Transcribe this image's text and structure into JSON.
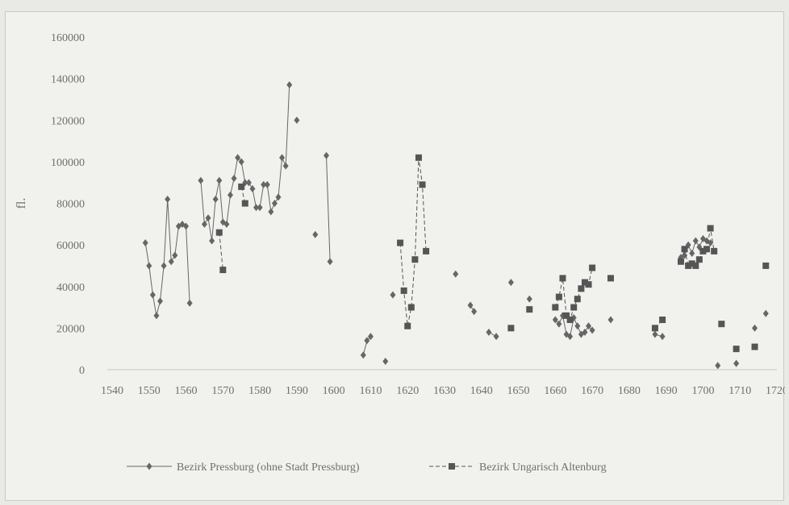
{
  "chart_data": {
    "type": "line",
    "title": "",
    "xlabel": "",
    "ylabel": "fl.",
    "xlim": [
      1540,
      1720
    ],
    "ylim": [
      0,
      160000
    ],
    "x_ticks": [
      1540,
      1550,
      1560,
      1570,
      1580,
      1590,
      1600,
      1610,
      1620,
      1630,
      1640,
      1650,
      1660,
      1670,
      1680,
      1690,
      1700,
      1710,
      1720
    ],
    "y_ticks": [
      0,
      20000,
      40000,
      60000,
      80000,
      100000,
      120000,
      140000,
      160000
    ],
    "grid": false,
    "legend_position": "bottom",
    "series": [
      {
        "name": "Bezirk Pressburg (ohne Stadt Pressburg)",
        "style": "solid",
        "marker": "diamond",
        "color": "#666666",
        "segments": [
          [
            [
              1549,
              61000
            ],
            [
              1550,
              50000
            ],
            [
              1551,
              36000
            ],
            [
              1552,
              26000
            ],
            [
              1553,
              33000
            ],
            [
              1554,
              50000
            ],
            [
              1555,
              82000
            ],
            [
              1556,
              52000
            ],
            [
              1557,
              55000
            ],
            [
              1558,
              69000
            ],
            [
              1559,
              70000
            ],
            [
              1560,
              69000
            ],
            [
              1561,
              32000
            ]
          ],
          [
            [
              1564,
              91000
            ],
            [
              1565,
              70000
            ],
            [
              1566,
              73000
            ],
            [
              1567,
              62000
            ],
            [
              1568,
              82000
            ],
            [
              1569,
              91000
            ],
            [
              1570,
              71000
            ],
            [
              1571,
              70000
            ],
            [
              1572,
              84000
            ],
            [
              1573,
              92000
            ],
            [
              1574,
              102000
            ],
            [
              1575,
              100000
            ],
            [
              1576,
              90000
            ],
            [
              1577,
              90000
            ],
            [
              1578,
              87000
            ],
            [
              1579,
              78000
            ],
            [
              1580,
              78000
            ],
            [
              1581,
              89000
            ],
            [
              1582,
              89000
            ],
            [
              1583,
              76000
            ],
            [
              1584,
              80000
            ],
            [
              1585,
              83000
            ],
            [
              1586,
              102000
            ],
            [
              1587,
              98000
            ],
            [
              1588,
              137000
            ]
          ],
          [
            [
              1590,
              120000
            ]
          ],
          [
            [
              1595,
              65000
            ]
          ],
          [
            [
              1598,
              103000
            ],
            [
              1599,
              52000
            ]
          ],
          [
            [
              1608,
              7000
            ],
            [
              1609,
              14000
            ],
            [
              1610,
              16000
            ]
          ],
          [
            [
              1614,
              4000
            ]
          ],
          [
            [
              1616,
              36000
            ]
          ],
          [
            [
              1633,
              46000
            ]
          ],
          [
            [
              1637,
              31000
            ],
            [
              1638,
              28000
            ]
          ],
          [
            [
              1642,
              18000
            ],
            [
              1644,
              16000
            ]
          ],
          [
            [
              1648,
              42000
            ]
          ],
          [
            [
              1653,
              34000
            ]
          ],
          [
            [
              1660,
              24000
            ],
            [
              1661,
              22000
            ],
            [
              1662,
              26000
            ],
            [
              1663,
              17000
            ],
            [
              1664,
              16000
            ],
            [
              1665,
              25000
            ],
            [
              1666,
              21000
            ],
            [
              1667,
              17000
            ],
            [
              1668,
              18000
            ],
            [
              1669,
              21000
            ],
            [
              1670,
              19000
            ]
          ],
          [
            [
              1675,
              24000
            ]
          ],
          [
            [
              1687,
              17000
            ],
            [
              1689,
              16000
            ]
          ],
          [
            [
              1694,
              54000
            ],
            [
              1695,
              55000
            ],
            [
              1696,
              60000
            ],
            [
              1697,
              56000
            ],
            [
              1698,
              62000
            ],
            [
              1699,
              59000
            ],
            [
              1700,
              63000
            ],
            [
              1701,
              62000
            ],
            [
              1702,
              61000
            ]
          ],
          [
            [
              1704,
              2000
            ]
          ],
          [
            [
              1709,
              3000
            ]
          ],
          [
            [
              1714,
              20000
            ]
          ],
          [
            [
              1717,
              27000
            ]
          ]
        ]
      },
      {
        "name": "Bezirk Ungarisch Altenburg",
        "style": "dashed",
        "marker": "square",
        "color": "#555555",
        "segments": [
          [
            [
              1569,
              66000
            ],
            [
              1570,
              48000
            ]
          ],
          [
            [
              1575,
              88000
            ],
            [
              1576,
              80000
            ]
          ],
          [
            [
              1618,
              61000
            ],
            [
              1619,
              38000
            ],
            [
              1620,
              21000
            ],
            [
              1621,
              30000
            ],
            [
              1622,
              53000
            ],
            [
              1623,
              102000
            ],
            [
              1624,
              89000
            ],
            [
              1625,
              57000
            ]
          ],
          [
            [
              1648,
              20000
            ]
          ],
          [
            [
              1653,
              29000
            ]
          ],
          [
            [
              1660,
              30000
            ],
            [
              1661,
              35000
            ],
            [
              1662,
              44000
            ],
            [
              1663,
              26000
            ],
            [
              1664,
              24000
            ],
            [
              1665,
              30000
            ],
            [
              1666,
              34000
            ],
            [
              1667,
              39000
            ],
            [
              1668,
              42000
            ],
            [
              1669,
              41000
            ],
            [
              1670,
              49000
            ]
          ],
          [
            [
              1675,
              44000
            ]
          ],
          [
            [
              1687,
              20000
            ],
            [
              1689,
              24000
            ]
          ],
          [
            [
              1694,
              52000
            ],
            [
              1695,
              58000
            ],
            [
              1696,
              50000
            ],
            [
              1697,
              51000
            ],
            [
              1698,
              50000
            ],
            [
              1699,
              53000
            ],
            [
              1700,
              57000
            ],
            [
              1701,
              58000
            ],
            [
              1702,
              68000
            ],
            [
              1703,
              57000
            ]
          ],
          [
            [
              1705,
              22000
            ]
          ],
          [
            [
              1709,
              10000
            ]
          ],
          [
            [
              1714,
              11000
            ]
          ],
          [
            [
              1717,
              50000
            ]
          ]
        ]
      }
    ]
  }
}
